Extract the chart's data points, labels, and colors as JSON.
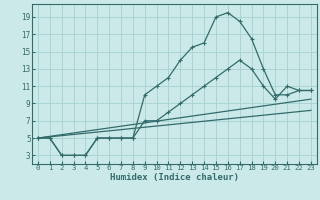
{
  "xlabel": "Humidex (Indice chaleur)",
  "bg_color": "#cce9e9",
  "grid_color": "#aad4d4",
  "line_color": "#336b6b",
  "xlim": [
    -0.5,
    23.5
  ],
  "ylim": [
    2.0,
    20.5
  ],
  "xticks": [
    0,
    1,
    2,
    3,
    4,
    5,
    6,
    7,
    8,
    9,
    10,
    11,
    12,
    13,
    14,
    15,
    16,
    17,
    18,
    19,
    20,
    21,
    22,
    23
  ],
  "yticks": [
    3,
    5,
    7,
    9,
    11,
    13,
    15,
    17,
    19
  ],
  "peak_x": [
    0,
    1,
    2,
    3,
    4,
    5,
    6,
    7,
    8,
    9,
    10,
    11,
    12,
    13,
    14,
    15,
    16,
    17,
    18,
    19,
    20,
    21,
    22,
    23
  ],
  "peak_y": [
    5,
    5,
    3,
    3,
    3,
    5,
    5,
    5,
    5,
    10,
    11,
    12,
    14,
    15.5,
    16,
    19,
    19.5,
    18.5,
    16.5,
    13,
    10,
    10,
    10.5,
    10.5
  ],
  "low_x": [
    0,
    1,
    2,
    3,
    4,
    5,
    6,
    7,
    8,
    9,
    10,
    11,
    12,
    13,
    14,
    15,
    16,
    17,
    18,
    19,
    20,
    21,
    22,
    23
  ],
  "low_y": [
    5,
    5,
    3,
    3,
    3,
    5,
    5,
    5,
    5,
    7,
    7,
    8,
    9,
    10,
    11,
    12,
    13,
    14,
    13,
    11,
    9.5,
    11,
    10.5,
    10.5
  ],
  "trend1_x": [
    0,
    23
  ],
  "trend1_y": [
    5,
    9.5
  ],
  "trend2_x": [
    0,
    23
  ],
  "trend2_y": [
    5,
    8.2
  ]
}
